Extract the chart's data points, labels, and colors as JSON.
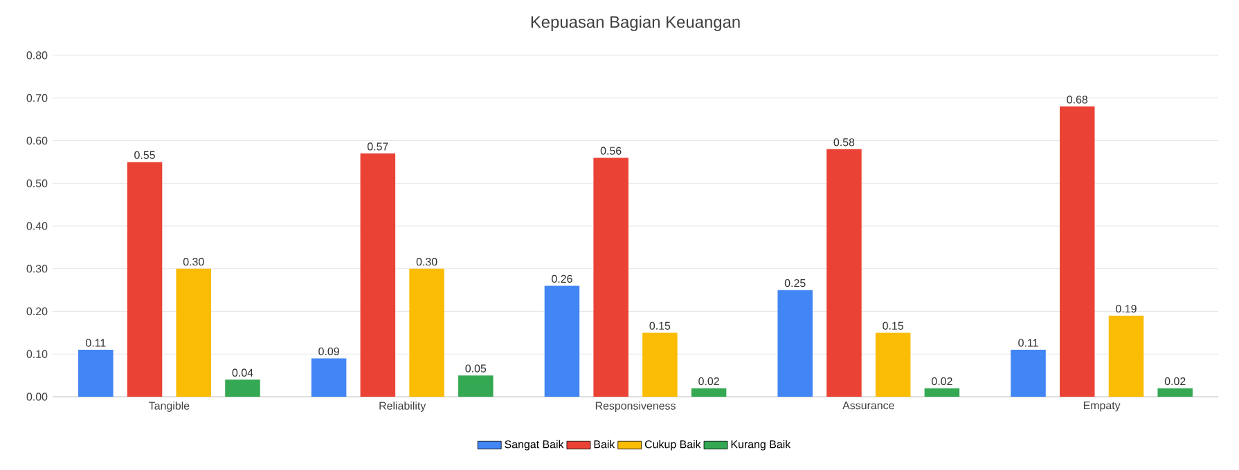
{
  "chart_data": {
    "type": "bar",
    "title": "Kepuasan Bagian Keuangan",
    "categories": [
      "Tangible",
      "Reliability",
      "Responsiveness",
      "Assurance",
      "Empaty"
    ],
    "series": [
      {
        "name": "Sangat Baik",
        "color": "#4285f4",
        "values": [
          0.11,
          0.09,
          0.26,
          0.25,
          0.11
        ],
        "value_labels": [
          "0.11",
          "0.09",
          "0.26",
          "0.25",
          "0.11"
        ]
      },
      {
        "name": "Baik",
        "color": "#ea4335",
        "values": [
          0.55,
          0.57,
          0.56,
          0.58,
          0.68
        ],
        "value_labels": [
          "0.55",
          "0.57",
          "0.56",
          "0.58",
          "0.68"
        ]
      },
      {
        "name": "Cukup Baik",
        "color": "#fbbc04",
        "values": [
          0.3,
          0.3,
          0.15,
          0.15,
          0.19
        ],
        "value_labels": [
          "0.30",
          "0.30",
          "0.15",
          "0.15",
          "0.19"
        ]
      },
      {
        "name": "Kurang Baik",
        "color": "#34a853",
        "values": [
          0.04,
          0.05,
          0.02,
          0.02,
          0.02
        ],
        "value_labels": [
          "0.04",
          "0.05",
          "0.02",
          "0.02",
          "0.02"
        ]
      }
    ],
    "ylim": [
      0,
      0.8
    ],
    "yticks": [
      {
        "value": 0,
        "label": "0.00"
      },
      {
        "value": 0.1,
        "label": "0.10"
      },
      {
        "value": 0.2,
        "label": "0.20"
      },
      {
        "value": 0.3,
        "label": "0.30"
      },
      {
        "value": 0.4,
        "label": "0.40"
      },
      {
        "value": 0.5,
        "label": "0.50"
      },
      {
        "value": 0.6,
        "label": "0.60"
      },
      {
        "value": 0.7,
        "label": "0.70"
      },
      {
        "value": 0.8,
        "label": "0.80"
      }
    ],
    "grid": "y",
    "legend": "bottom"
  }
}
